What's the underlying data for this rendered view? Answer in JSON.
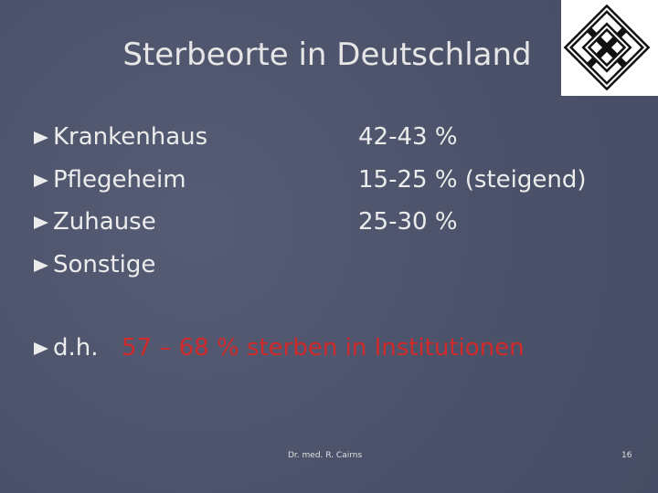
{
  "header": {
    "title": "Sterbeorte in Deutschland"
  },
  "items": [
    {
      "label": "Krankenhaus",
      "value": "42-43 %"
    },
    {
      "label": "Pflegeheim",
      "value": "15-25 % (steigend)"
    },
    {
      "label": "Zuhause",
      "value": "25-30 %"
    },
    {
      "label": "Sonstige",
      "value": null
    }
  ],
  "conclusion": {
    "prefix": "d.h.",
    "text": "57 – 68 % sterben in Institutionen"
  },
  "footer": {
    "author": "Dr. med. R. Cairns",
    "page": "16"
  }
}
